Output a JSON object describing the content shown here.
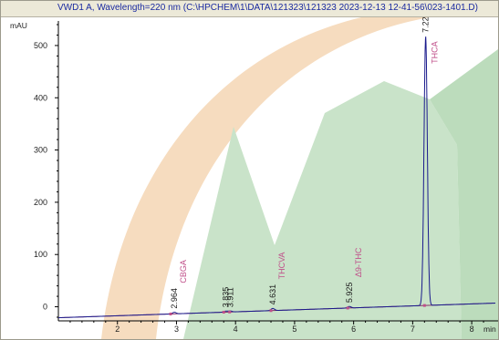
{
  "window": {
    "title": "VWD1 A, Wavelength=220 nm (C:\\HPCHEM\\1\\DATA\\121323\\121323 2023-12-13 12-41-56\\023-1401.D)"
  },
  "colors": {
    "trace": "#1a1a8c",
    "baseline": "#7a1a5a",
    "peak_name": "#c0508a",
    "axis": "#000000",
    "background": "#ffffff",
    "title_text": "#1a2aa0",
    "watermark_orange": "#f6dcbf",
    "watermark_green": "#c9e3c9",
    "watermark_green_dark": "#bcdcbc"
  },
  "chart_data": {
    "type": "line",
    "title": "",
    "ylabel": "mAU",
    "xlabel": "min",
    "xlim": [
      1.0,
      8.4
    ],
    "ylim": [
      -20,
      540
    ],
    "x_ticks": [
      2,
      3,
      4,
      5,
      6,
      7,
      8
    ],
    "y_ticks": [
      0,
      100,
      200,
      300,
      400,
      500
    ],
    "grid": false,
    "baseline_start": [
      1.0,
      -21
    ],
    "baseline_end": [
      8.4,
      7
    ],
    "peaks": [
      {
        "rt": 2.964,
        "label": "2.964",
        "name": "CBGA",
        "height": 3
      },
      {
        "rt": 3.835,
        "label": "3.835",
        "name": "",
        "height": 2
      },
      {
        "rt": 3.911,
        "label": "3.911",
        "name": "",
        "height": 2
      },
      {
        "rt": 4.631,
        "label": "4.631",
        "name": "THCVA",
        "height": 4
      },
      {
        "rt": 5.925,
        "label": "5.925",
        "name": "Δ9-THC",
        "height": 3
      },
      {
        "rt": 7.22,
        "label": "7.220",
        "name": "THCA",
        "height": 515
      }
    ],
    "peak_markers": [
      2.9,
      3.8,
      3.9,
      4.6,
      5.9,
      7.2
    ]
  }
}
